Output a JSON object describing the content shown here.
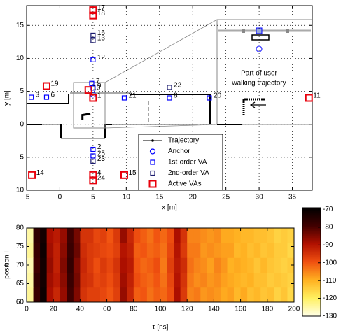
{
  "chart_data": [
    {
      "type": "scatter",
      "xlabel": "x [m]",
      "ylabel": "y [m]",
      "xlim": [
        -5,
        38
      ],
      "xticks": [
        -5,
        0,
        5,
        10,
        15,
        20,
        25,
        30,
        35
      ],
      "ylim": [
        -10,
        18
      ],
      "yticks": [
        -10,
        -5,
        0,
        5,
        10,
        15
      ],
      "grid": true,
      "annotations": [
        "Part of user",
        "walking trajectory"
      ],
      "series": [
        {
          "name": "Trajectory",
          "color": "#000000",
          "marker": "line",
          "x": [
            3.4,
            3.4,
            4.6
          ],
          "values": [
            0.7,
            1.4,
            1.6
          ]
        },
        {
          "name": "Anchor",
          "color": "#0000ff",
          "marker": "circle",
          "x": [
            5
          ],
          "values": [
            4.5
          ]
        },
        {
          "name": "1st-order VA",
          "color": "#0000ff",
          "marker": "square",
          "x": [
            -4.3,
            -2,
            5,
            4.8,
            9.7,
            16.5,
            22.5,
            5,
            5,
            5
          ],
          "values": [
            4.1,
            4.1,
            5.5,
            6.2,
            4,
            4,
            4,
            9.8,
            -3.8,
            -4.8
          ],
          "labels": [
            "3",
            "6",
            "9",
            "7",
            "21",
            "8",
            "20",
            "12",
            "2",
            "25"
          ]
        },
        {
          "name": "2nd-order VA",
          "color": "#1a1a6e",
          "marker": "square",
          "x": [
            5,
            5,
            16.5,
            5
          ],
          "values": [
            13.5,
            12.7,
            5.6,
            -5.6
          ],
          "labels": [
            "16",
            "13",
            "22",
            "23"
          ]
        },
        {
          "name": "Active VAs",
          "color": "#e8000b",
          "marker": "bigsquare",
          "x": [
            5,
            5,
            -2,
            4.3,
            5,
            37.5,
            5,
            5,
            -4.2,
            9.7
          ],
          "values": [
            17.3,
            16.5,
            5.8,
            5.2,
            4,
            4,
            -7.7,
            -8.5,
            -7.7,
            -7.7
          ],
          "labels": [
            "17",
            "18",
            "19",
            "10",
            "1",
            "11",
            "4",
            "24",
            "14",
            "15"
          ]
        }
      ]
    },
    {
      "type": "heatmap",
      "xlabel": "τ [ns]",
      "ylabel": "position l",
      "xlim": [
        0,
        200
      ],
      "xticks": [
        0,
        20,
        40,
        60,
        80,
        100,
        120,
        140,
        160,
        180,
        200
      ],
      "ylim": [
        60,
        80
      ],
      "yticks": [
        60,
        65,
        70,
        75,
        80
      ],
      "clim": [
        -130,
        -69
      ],
      "cticks": [
        -70,
        -80,
        -90,
        -100,
        -110,
        -120,
        -130
      ],
      "colorscale": [
        "#ffffe8",
        "#fff060",
        "#ffb020",
        "#f05010",
        "#b01000",
        "#400000",
        "#000000"
      ],
      "xbins": [
        0,
        5,
        10,
        15,
        20,
        25,
        30,
        35,
        40,
        45,
        50,
        55,
        60,
        65,
        70,
        75,
        80,
        85,
        90,
        95,
        100,
        105,
        110,
        115,
        120,
        125,
        130,
        135,
        140,
        145,
        150,
        155,
        160,
        165,
        170,
        175,
        180,
        185,
        190,
        195,
        200
      ],
      "ybins": [
        60,
        64,
        68,
        72,
        76,
        80
      ],
      "z": [
        [
          -124,
          -78,
          -71,
          -89,
          -93,
          -87,
          -79,
          -85,
          -95,
          -97,
          -97,
          -98,
          -100,
          -97,
          -87,
          -93,
          -101,
          -100,
          -103,
          -101,
          -102,
          -99,
          -89,
          -96,
          -105,
          -104,
          -107,
          -106,
          -107,
          -109,
          -108,
          -111,
          -109,
          -112,
          -111,
          -113,
          -112,
          -115,
          -113,
          -116
        ],
        [
          -125,
          -77,
          -72,
          -88,
          -91,
          -86,
          -78,
          -84,
          -94,
          -95,
          -98,
          -97,
          -99,
          -96,
          -88,
          -92,
          -99,
          -101,
          -102,
          -100,
          -103,
          -98,
          -90,
          -95,
          -104,
          -106,
          -105,
          -107,
          -106,
          -108,
          -109,
          -110,
          -111,
          -110,
          -112,
          -112,
          -114,
          -113,
          -114,
          -115
        ],
        [
          -126,
          -79,
          -72,
          -87,
          -92,
          -85,
          -77,
          -85,
          -93,
          -96,
          -99,
          -96,
          -98,
          -95,
          -89,
          -91,
          -100,
          -102,
          -101,
          -99,
          -104,
          -97,
          -91,
          -94,
          -103,
          -105,
          -106,
          -108,
          -105,
          -107,
          -110,
          -109,
          -110,
          -111,
          -113,
          -111,
          -113,
          -114,
          -115,
          -114
        ],
        [
          -124,
          -78,
          -71,
          -88,
          -92,
          -86,
          -78,
          -83,
          -94,
          -96,
          -97,
          -98,
          -99,
          -97,
          -90,
          -92,
          -101,
          -100,
          -102,
          -101,
          -103,
          -98,
          -90,
          -96,
          -104,
          -104,
          -107,
          -106,
          -107,
          -108,
          -108,
          -111,
          -110,
          -112,
          -111,
          -113,
          -112,
          -114,
          -114,
          -116
        ],
        [
          -125,
          -77,
          -72,
          -89,
          -91,
          -87,
          -79,
          -84,
          -95,
          -95,
          -98,
          -97,
          -100,
          -96,
          -87,
          -93,
          -99,
          -101,
          -103,
          -100,
          -102,
          -99,
          -89,
          -95,
          -105,
          -105,
          -106,
          -107,
          -106,
          -109,
          -109,
          -110,
          -111,
          -111,
          -112,
          -112,
          -113,
          -115,
          -114,
          -115
        ]
      ]
    }
  ]
}
